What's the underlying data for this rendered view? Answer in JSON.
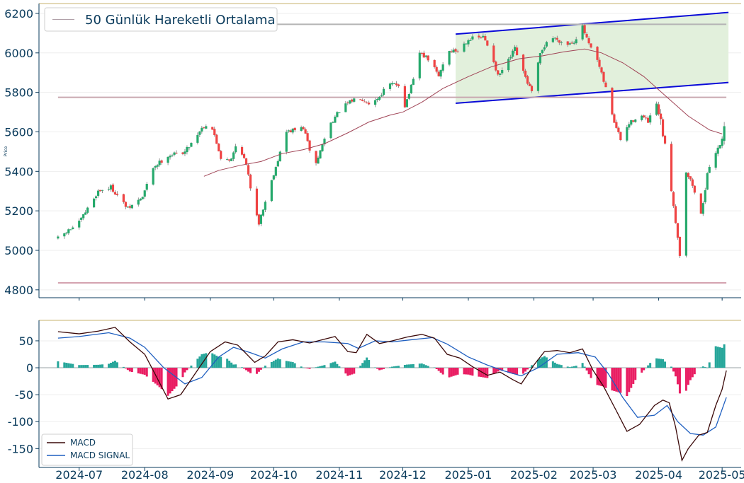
{
  "chart_data": [
    {
      "type": "candlestick",
      "ylabel": "Price",
      "ylim": [
        4760,
        6250
      ],
      "yticks": [
        "4800",
        "5000",
        "5200",
        "5400",
        "5600",
        "5800",
        "6000",
        "6200"
      ],
      "xlim": [
        "2024-06-12",
        "2025-05-10"
      ],
      "x_ticks": [
        "2024-07",
        "2024-08",
        "2024-09",
        "2024-10",
        "2024-11",
        "2024-12",
        "2025-01",
        "2025-02",
        "2025-03",
        "2025-04",
        "2025-05"
      ],
      "legend": {
        "position": "top-left",
        "entries": [
          "50 Günlük Hareketli Ortalama"
        ]
      },
      "ohlc_keypoints": [
        [
          "2024-06-21",
          5060
        ],
        [
          "2024-07-01",
          5140
        ],
        [
          "2024-07-10",
          5300
        ],
        [
          "2024-07-16",
          5320
        ],
        [
          "2024-07-24",
          5210
        ],
        [
          "2024-07-31",
          5270
        ],
        [
          "2024-08-05",
          5420
        ],
        [
          "2024-08-12",
          5480
        ],
        [
          "2024-08-20",
          5500
        ],
        [
          "2024-08-28",
          5620
        ],
        [
          "2024-09-01",
          5650
        ],
        [
          "2024-09-06",
          5470
        ],
        [
          "2024-09-11",
          5460
        ],
        [
          "2024-09-14",
          5560
        ],
        [
          "2024-09-18",
          5430
        ],
        [
          "2024-09-20",
          5320
        ],
        [
          "2024-09-24",
          5140
        ],
        [
          "2024-10-01",
          5390
        ],
        [
          "2024-10-07",
          5600
        ],
        [
          "2024-10-15",
          5620
        ],
        [
          "2024-10-18",
          5510
        ],
        [
          "2024-10-21",
          5440
        ],
        [
          "2024-10-27",
          5630
        ],
        [
          "2024-11-02",
          5720
        ],
        [
          "2024-11-10",
          5780
        ],
        [
          "2024-11-16",
          5740
        ],
        [
          "2024-11-20",
          5780
        ],
        [
          "2024-11-24",
          5840
        ],
        [
          "2024-11-30",
          5840
        ],
        [
          "2024-12-01",
          5700
        ],
        [
          "2024-12-06",
          5860
        ],
        [
          "2024-12-09",
          6000
        ],
        [
          "2024-12-14",
          5960
        ],
        [
          "2024-12-18",
          5880
        ],
        [
          "2024-12-22",
          6010
        ],
        [
          "2024-12-27",
          6010
        ],
        [
          "2025-01-01",
          6070
        ],
        [
          "2025-01-08",
          6080
        ],
        [
          "2025-01-12",
          6000
        ],
        [
          "2025-01-15",
          5880
        ],
        [
          "2025-01-19",
          5940
        ],
        [
          "2025-01-23",
          6020
        ],
        [
          "2025-01-27",
          5900
        ],
        [
          "2025-01-31",
          5800
        ],
        [
          "2025-02-04",
          5990
        ],
        [
          "2025-02-08",
          6080
        ],
        [
          "2025-02-12",
          6070
        ],
        [
          "2025-02-16",
          6040
        ],
        [
          "2025-02-20",
          6060
        ],
        [
          "2025-02-24",
          6130
        ],
        [
          "2025-02-27",
          6040
        ],
        [
          "2025-03-03",
          5960
        ],
        [
          "2025-03-07",
          5820
        ],
        [
          "2025-03-11",
          5650
        ],
        [
          "2025-03-14",
          5560
        ],
        [
          "2025-03-18",
          5640
        ],
        [
          "2025-03-23",
          5690
        ],
        [
          "2025-03-27",
          5650
        ],
        [
          "2025-03-31",
          5740
        ],
        [
          "2025-04-04",
          5530
        ],
        [
          "2025-04-08",
          5230
        ],
        [
          "2025-04-11",
          4980
        ],
        [
          "2025-04-14",
          5400
        ],
        [
          "2025-04-17",
          5330
        ],
        [
          "2025-04-21",
          5180
        ],
        [
          "2025-04-24",
          5380
        ],
        [
          "2025-04-27",
          5480
        ],
        [
          "2025-05-01",
          5560
        ],
        [
          "2025-05-02",
          5650
        ]
      ],
      "sma50": [
        [
          "2024-08-29",
          5375
        ],
        [
          "2024-09-05",
          5405
        ],
        [
          "2024-09-15",
          5430
        ],
        [
          "2024-09-25",
          5450
        ],
        [
          "2024-10-05",
          5490
        ],
        [
          "2024-10-15",
          5510
        ],
        [
          "2024-10-25",
          5540
        ],
        [
          "2024-11-05",
          5595
        ],
        [
          "2024-11-15",
          5650
        ],
        [
          "2024-11-25",
          5685
        ],
        [
          "2024-12-01",
          5700
        ],
        [
          "2024-12-10",
          5750
        ],
        [
          "2024-12-20",
          5820
        ],
        [
          "2025-01-01",
          5880
        ],
        [
          "2025-01-12",
          5930
        ],
        [
          "2025-01-25",
          5970
        ],
        [
          "2025-02-05",
          5985
        ],
        [
          "2025-02-15",
          6005
        ],
        [
          "2025-02-25",
          6020
        ],
        [
          "2025-03-05",
          6000
        ],
        [
          "2025-03-15",
          5950
        ],
        [
          "2025-03-25",
          5880
        ],
        [
          "2025-04-05",
          5775
        ],
        [
          "2025-04-15",
          5680
        ],
        [
          "2025-04-25",
          5610
        ],
        [
          "2025-05-01",
          5590
        ]
      ],
      "horizontal_levels": [
        {
          "y": 6145,
          "color": "#b4b4b4"
        },
        {
          "y": 5775,
          "color": "#c9a8b0"
        },
        {
          "y": 4835,
          "color": "#d4a3b0"
        }
      ],
      "channel": {
        "upper": [
          [
            "2024-12-26",
            6095
          ],
          [
            "2025-05-04",
            6205
          ]
        ],
        "lower": [
          [
            "2024-12-26",
            5745
          ],
          [
            "2025-05-04",
            5850
          ]
        ],
        "fill": "#e2f0dc",
        "line_color": "#0a0ad8"
      },
      "colors": {
        "up": "#26a96c",
        "down": "#ef4444",
        "sma": "#a04456"
      }
    },
    {
      "type": "line+bar",
      "ylim": [
        -185,
        88
      ],
      "yticks": [
        "50",
        "0",
        "-50",
        "-100",
        "-150"
      ],
      "legend": {
        "position": "bottom-left",
        "entries": [
          "MACD",
          "MACD SIGNAL"
        ]
      },
      "macd": [
        [
          "2024-06-21",
          67
        ],
        [
          "2024-07-01",
          63
        ],
        [
          "2024-07-10",
          68
        ],
        [
          "2024-07-18",
          75
        ],
        [
          "2024-07-25",
          48
        ],
        [
          "2024-08-01",
          25
        ],
        [
          "2024-08-07",
          -20
        ],
        [
          "2024-08-12",
          -58
        ],
        [
          "2024-08-18",
          -50
        ],
        [
          "2024-08-25",
          -10
        ],
        [
          "2024-09-01",
          30
        ],
        [
          "2024-09-08",
          48
        ],
        [
          "2024-09-14",
          42
        ],
        [
          "2024-09-22",
          10
        ],
        [
          "2024-09-27",
          22
        ],
        [
          "2024-10-03",
          48
        ],
        [
          "2024-10-10",
          52
        ],
        [
          "2024-10-18",
          46
        ],
        [
          "2024-10-24",
          52
        ],
        [
          "2024-10-30",
          58
        ],
        [
          "2024-11-05",
          30
        ],
        [
          "2024-11-09",
          28
        ],
        [
          "2024-11-14",
          62
        ],
        [
          "2024-11-20",
          45
        ],
        [
          "2024-11-26",
          50
        ],
        [
          "2024-12-03",
          57
        ],
        [
          "2024-12-10",
          62
        ],
        [
          "2024-12-16",
          55
        ],
        [
          "2024-12-22",
          25
        ],
        [
          "2024-12-28",
          18
        ],
        [
          "2025-01-03",
          2
        ],
        [
          "2025-01-10",
          -14
        ],
        [
          "2025-01-16",
          -8
        ],
        [
          "2025-01-22",
          -22
        ],
        [
          "2025-01-26",
          -30
        ],
        [
          "2025-02-01",
          5
        ],
        [
          "2025-02-06",
          30
        ],
        [
          "2025-02-12",
          32
        ],
        [
          "2025-02-18",
          28
        ],
        [
          "2025-02-24",
          35
        ],
        [
          "2025-03-01",
          -5
        ],
        [
          "2025-03-06",
          -35
        ],
        [
          "2025-03-12",
          -80
        ],
        [
          "2025-03-17",
          -118
        ],
        [
          "2025-03-23",
          -105
        ],
        [
          "2025-03-30",
          -70
        ],
        [
          "2025-04-03",
          -60
        ],
        [
          "2025-04-06",
          -65
        ],
        [
          "2025-04-09",
          -110
        ],
        [
          "2025-04-12",
          -172
        ],
        [
          "2025-04-15",
          -150
        ],
        [
          "2025-04-20",
          -125
        ],
        [
          "2025-04-24",
          -120
        ],
        [
          "2025-04-28",
          -70
        ],
        [
          "2025-05-01",
          -40
        ],
        [
          "2025-05-03",
          -5
        ]
      ],
      "signal": [
        [
          "2024-06-21",
          55
        ],
        [
          "2024-07-01",
          58
        ],
        [
          "2024-07-15",
          65
        ],
        [
          "2024-07-25",
          55
        ],
        [
          "2024-08-01",
          38
        ],
        [
          "2024-08-10",
          0
        ],
        [
          "2024-08-20",
          -30
        ],
        [
          "2024-08-28",
          -18
        ],
        [
          "2024-09-05",
          20
        ],
        [
          "2024-09-12",
          38
        ],
        [
          "2024-09-20",
          28
        ],
        [
          "2024-09-27",
          18
        ],
        [
          "2024-10-05",
          35
        ],
        [
          "2024-10-15",
          48
        ],
        [
          "2024-10-25",
          48
        ],
        [
          "2024-11-05",
          45
        ],
        [
          "2024-11-10",
          36
        ],
        [
          "2024-11-18",
          50
        ],
        [
          "2024-11-26",
          48
        ],
        [
          "2024-12-05",
          52
        ],
        [
          "2024-12-15",
          56
        ],
        [
          "2024-12-22",
          44
        ],
        [
          "2025-01-01",
          20
        ],
        [
          "2025-01-10",
          5
        ],
        [
          "2025-01-18",
          -6
        ],
        [
          "2025-01-26",
          -15
        ],
        [
          "2025-02-03",
          0
        ],
        [
          "2025-02-12",
          25
        ],
        [
          "2025-02-22",
          28
        ],
        [
          "2025-03-02",
          20
        ],
        [
          "2025-03-08",
          -10
        ],
        [
          "2025-03-15",
          -55
        ],
        [
          "2025-03-22",
          -92
        ],
        [
          "2025-03-30",
          -88
        ],
        [
          "2025-04-05",
          -70
        ],
        [
          "2025-04-10",
          -100
        ],
        [
          "2025-04-16",
          -122
        ],
        [
          "2025-04-22",
          -125
        ],
        [
          "2025-04-28",
          -110
        ],
        [
          "2025-05-03",
          -55
        ]
      ],
      "colors": {
        "macd": "#3a0808",
        "signal": "#1f5fc0",
        "hist_pos": "#26a69a",
        "hist_neg": "#e91e63"
      }
    }
  ]
}
